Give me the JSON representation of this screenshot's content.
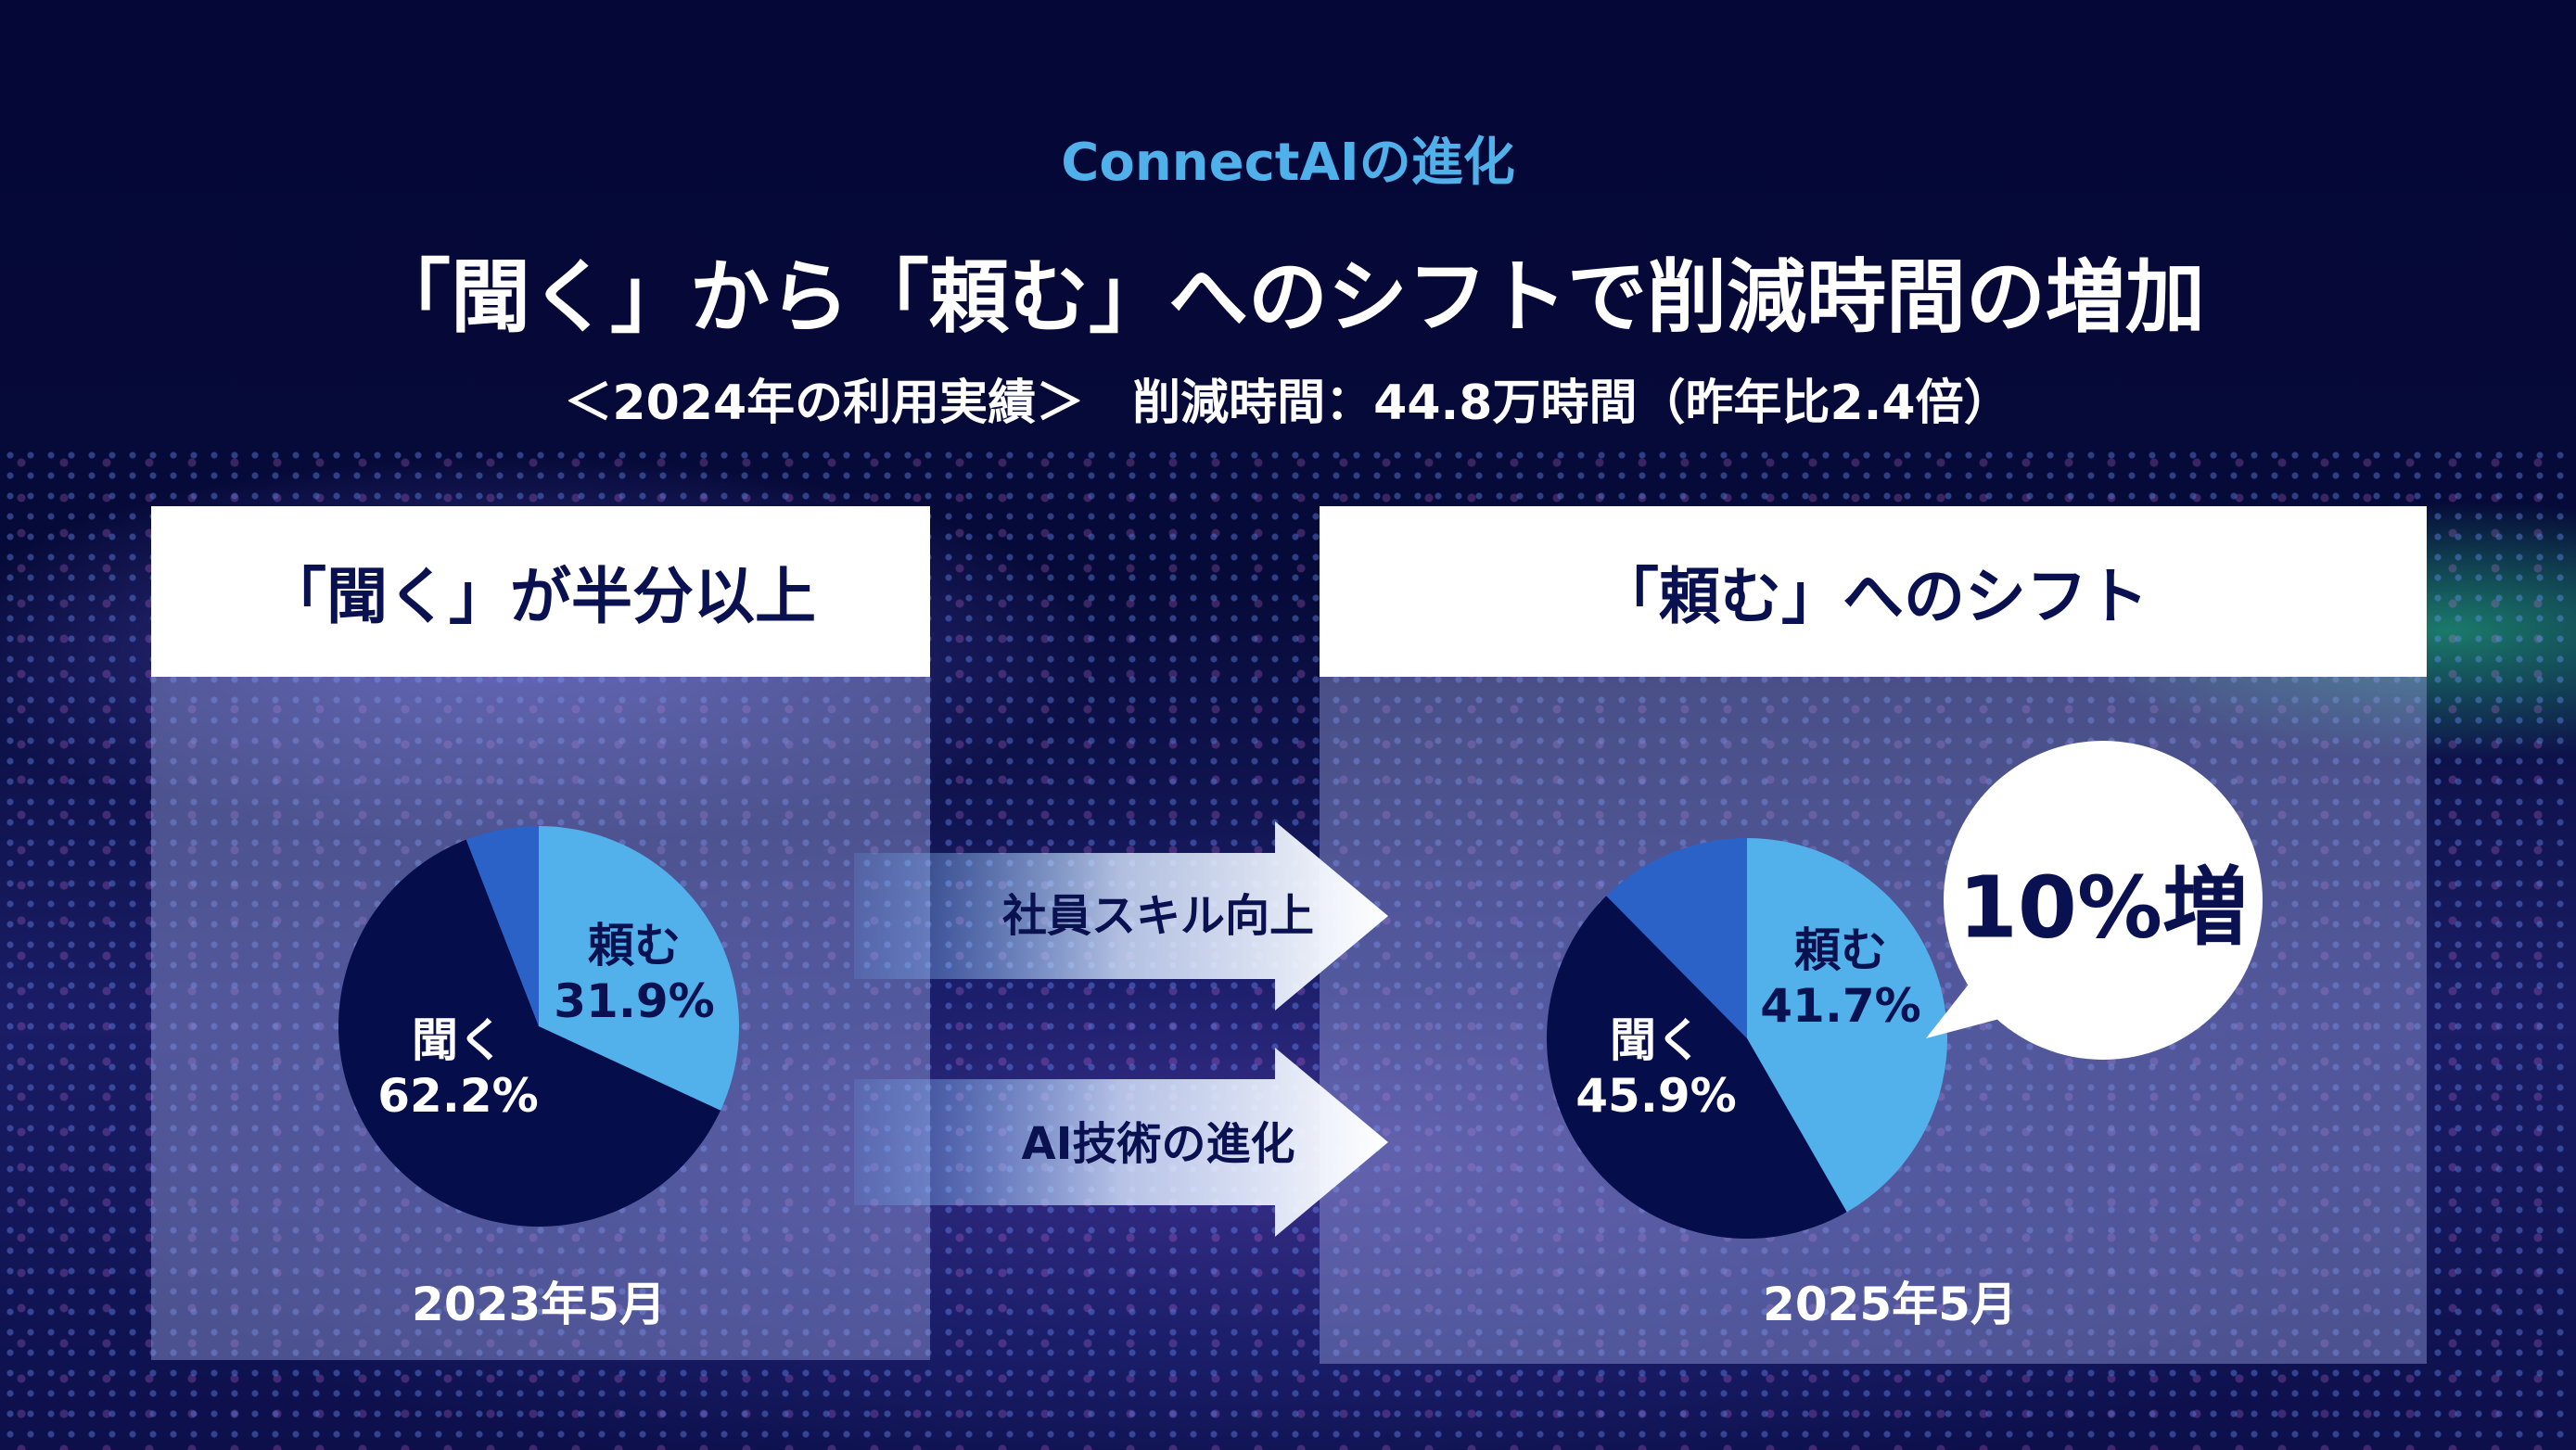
{
  "header": {
    "kicker": "ConnectAIの進化",
    "title": "「聞く」から「頼む」へのシフトで削減時間の増加",
    "subtitle": "＜2024年の利用実績＞　削減時間：44.8万時間（昨年比2.4倍）"
  },
  "left_panel": {
    "title": "「聞く」が半分以上",
    "date": "2023年5月"
  },
  "right_panel": {
    "title": "「頼む」へのシフト",
    "date": "2025年5月",
    "callout": "10%増"
  },
  "arrows": [
    "社員スキル向上",
    "AI技術の進化"
  ],
  "colors": {
    "tanomu": "#52b1ea",
    "kiku": "#050d4a",
    "other": "#2b62c8",
    "background": "#060a38"
  },
  "chart_data": [
    {
      "type": "pie",
      "title": "2023年5月",
      "slices": [
        {
          "label": "頼む",
          "value": 31.9,
          "text": "31.9%"
        },
        {
          "label": "聞く",
          "value": 62.2,
          "text": "62.2%"
        },
        {
          "label": "",
          "value": 5.9
        }
      ]
    },
    {
      "type": "pie",
      "title": "2025年5月",
      "slices": [
        {
          "label": "頼む",
          "value": 41.7,
          "text": "41.7%"
        },
        {
          "label": "聞く",
          "value": 45.9,
          "text": "45.9%"
        },
        {
          "label": "",
          "value": 12.4
        }
      ]
    }
  ]
}
